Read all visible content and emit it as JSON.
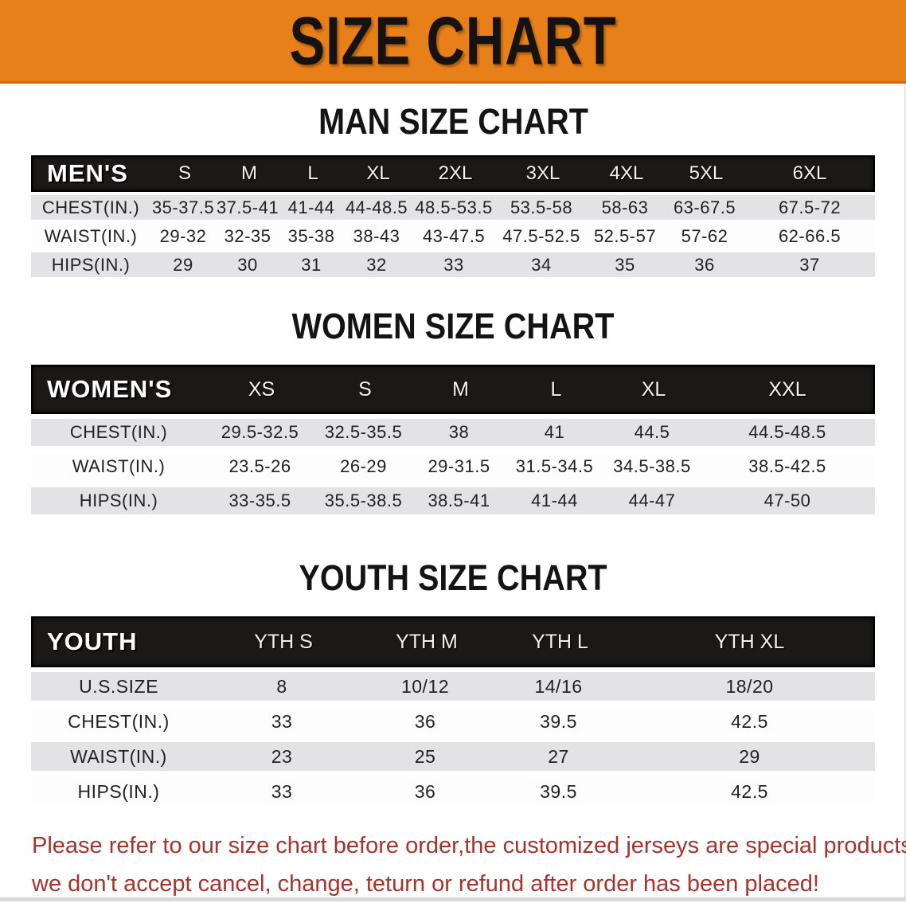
{
  "banner": {
    "title": "SIZE CHART"
  },
  "sections": [
    {
      "heading": "MAN SIZE CHART",
      "table": {
        "header_label": "MEN'S",
        "columns": [
          "S",
          "M",
          "L",
          "XL",
          "2XL",
          "3XL",
          "4XL",
          "5XL",
          "6XL"
        ],
        "rows": [
          {
            "label": "CHEST(IN.)",
            "values": [
              "35-37.5",
              "37.5-41",
              "41-44",
              "44-48.5",
              "48.5-53.5",
              "53.5-58",
              "58-63",
              "63-67.5",
              "67.5-72"
            ]
          },
          {
            "label": "WAIST(IN.)",
            "values": [
              "29-32",
              "32-35",
              "35-38",
              "38-43",
              "43-47.5",
              "47.5-52.5",
              "52.5-57",
              "57-62",
              "62-66.5"
            ]
          },
          {
            "label": "HIPS(IN.)",
            "values": [
              "29",
              "30",
              "31",
              "32",
              "33",
              "34",
              "35",
              "36",
              "37"
            ]
          }
        ]
      }
    },
    {
      "heading": "WOMEN SIZE CHART",
      "table": {
        "header_label": "WOMEN'S",
        "columns": [
          "XS",
          "S",
          "M",
          "L",
          "XL",
          "XXL"
        ],
        "rows": [
          {
            "label": "CHEST(IN.)",
            "values": [
              "29.5-32.5",
              "32.5-35.5",
              "38",
              "41",
              "44.5",
              "44.5-48.5"
            ]
          },
          {
            "label": "WAIST(IN.)",
            "values": [
              "23.5-26",
              "26-29",
              "29-31.5",
              "31.5-34.5",
              "34.5-38.5",
              "38.5-42.5"
            ]
          },
          {
            "label": "HIPS(IN.)",
            "values": [
              "33-35.5",
              "35.5-38.5",
              "38.5-41",
              "41-44",
              "44-47",
              "47-50"
            ]
          }
        ]
      }
    },
    {
      "heading": "YOUTH SIZE CHART",
      "table": {
        "header_label": "YOUTH",
        "columns": [
          "YTH S",
          "YTH M",
          "YTH L",
          "YTH XL"
        ],
        "rows": [
          {
            "label": "U.S.SIZE",
            "values": [
              "8",
              "10/12",
              "14/16",
              "18/20"
            ]
          },
          {
            "label": "CHEST(IN.)",
            "values": [
              "33",
              "36",
              "39.5",
              "42.5"
            ]
          },
          {
            "label": "WAIST(IN.)",
            "values": [
              "23",
              "25",
              "27",
              "29"
            ]
          },
          {
            "label": "HIPS(IN.)",
            "values": [
              "33",
              "36",
              "39.5",
              "42.5"
            ]
          }
        ]
      }
    }
  ],
  "footer": {
    "line1": "Please refer to our size chart before order,the customized jerseys are special products,",
    "line2": "we don't accept cancel, change, teturn or refund after order has been placed!"
  },
  "colors": {
    "banner-bg": "#e8801a",
    "banner-border": "#cf6b10",
    "bar-black": "#1b1918",
    "row-gray": "#e3e3e5",
    "footer-red": "#a8322c"
  }
}
